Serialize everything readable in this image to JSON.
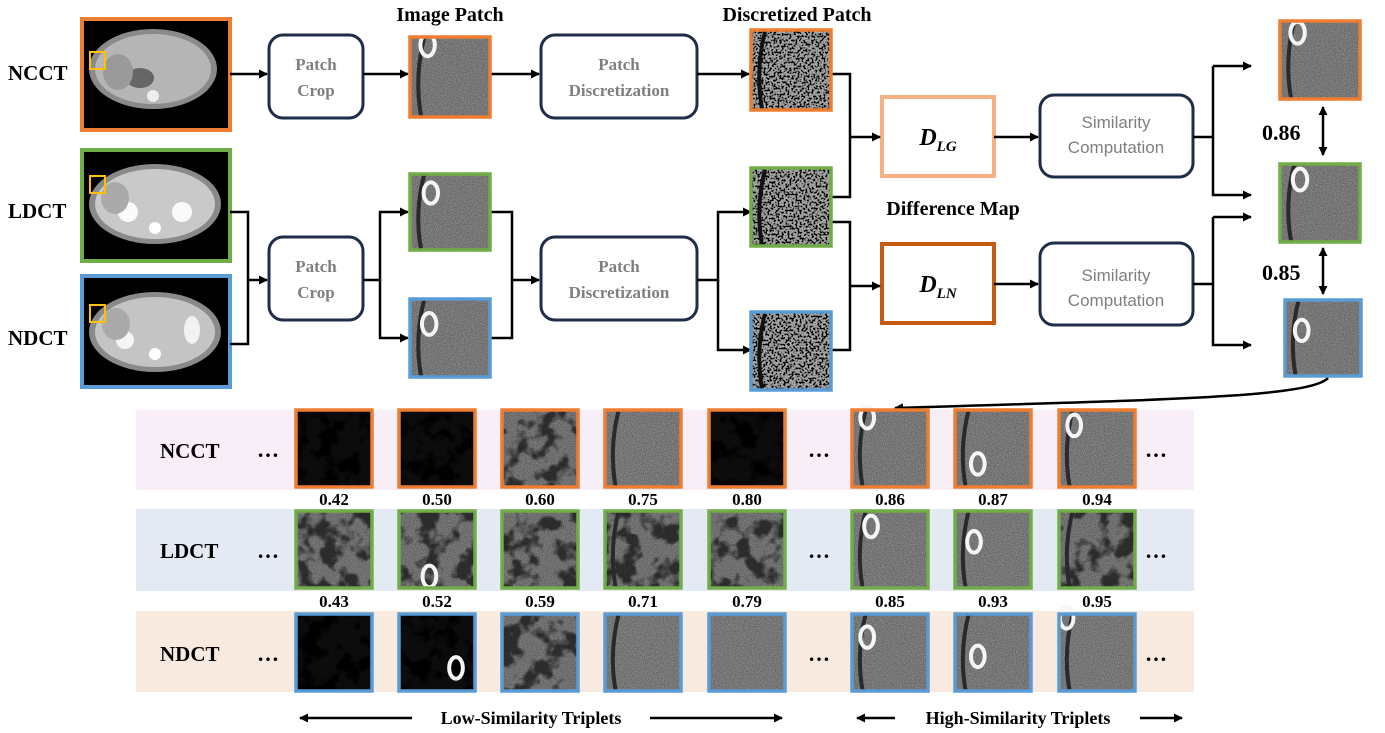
{
  "modalities": {
    "ncct": "NCCT",
    "ldct": "LDCT",
    "ndct": "NDCT"
  },
  "headers": {
    "image_patch": "Image Patch",
    "discretized_patch": "Discretized Patch",
    "difference_map": "Difference Map"
  },
  "boxes": {
    "patch_crop_1": [
      "Patch",
      "Crop"
    ],
    "patch_crop_2": [
      "Patch",
      "Crop"
    ],
    "discretization_1": [
      "Patch",
      "Discretization"
    ],
    "discretization_2": [
      "Patch",
      "Discretization"
    ],
    "similarity_1": [
      "Similarity",
      "Computation"
    ],
    "similarity_2": [
      "Similarity",
      "Computation"
    ]
  },
  "difference_maps": {
    "lg": {
      "base": "D",
      "sub": "LG"
    },
    "ln": {
      "base": "D",
      "sub": "LN"
    }
  },
  "top_scores": {
    "ncct_ldct": "0.86",
    "ldct_ndct": "0.85"
  },
  "triplets": {
    "ellipsis": "…",
    "ncct_scores": [
      "0.42",
      "0.50",
      "0.60",
      "0.75",
      "0.80",
      "0.86",
      "0.87",
      "0.94"
    ],
    "ldct_scores": [
      "0.43",
      "0.52",
      "0.59",
      "0.71",
      "0.79",
      "0.85",
      "0.93",
      "0.95"
    ]
  },
  "captions": {
    "low": "Low-Similarity Triplets",
    "high": "High-Similarity Triplets"
  },
  "colors": {
    "ncct": "#ED7D31",
    "ldct": "#70AD47",
    "ndct": "#5B9BD5",
    "navy": "#1F2D4A",
    "lg_box": "#F4B183",
    "ln_box": "#C55A11",
    "row_ncct": "#F8EEF7",
    "row_ldct": "#E4EAF4",
    "row_ndct": "#F8EADF",
    "box_text": "#7F7F7F",
    "roi": "#FFC000"
  }
}
